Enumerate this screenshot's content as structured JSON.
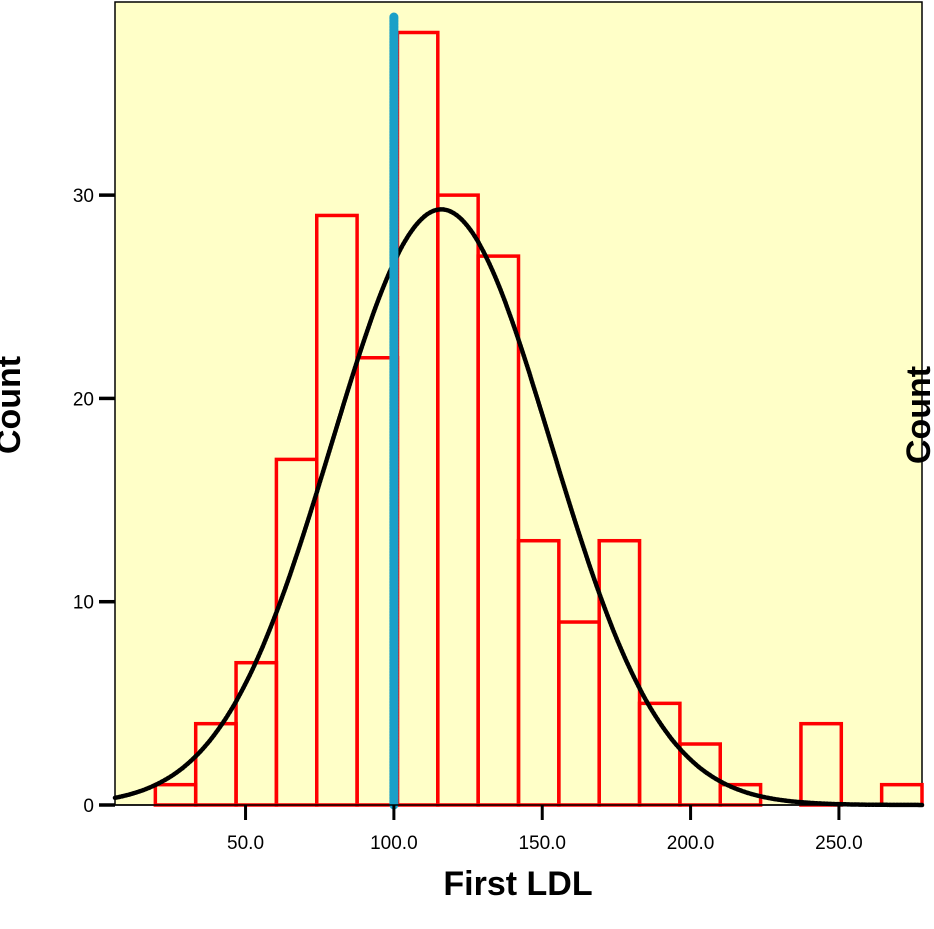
{
  "colors": {
    "background": "#ffffff",
    "plot_background": "#ffffc8",
    "bar_stroke": "#ff0000",
    "curve": "#000000",
    "reference_line": "#1aa0c8"
  },
  "chart_data": {
    "type": "bar",
    "subtype": "histogram",
    "title": "",
    "xlabel": "First LDL",
    "ylabel": "Count",
    "ylabel_right": "Count",
    "xlim": [
      6,
      278
    ],
    "ylim": [
      0,
      39.5
    ],
    "grid": false,
    "legend": "none",
    "bin_width": 13.6,
    "bins": [
      {
        "x0": 19.6,
        "x1": 33.2,
        "count": 1
      },
      {
        "x0": 33.2,
        "x1": 46.8,
        "count": 4
      },
      {
        "x0": 46.8,
        "x1": 60.4,
        "count": 7
      },
      {
        "x0": 60.4,
        "x1": 74.0,
        "count": 17
      },
      {
        "x0": 74.0,
        "x1": 87.6,
        "count": 29
      },
      {
        "x0": 87.6,
        "x1": 101.2,
        "count": 22
      },
      {
        "x0": 101.2,
        "x1": 114.8,
        "count": 38
      },
      {
        "x0": 114.8,
        "x1": 128.4,
        "count": 30
      },
      {
        "x0": 128.4,
        "x1": 142.0,
        "count": 27
      },
      {
        "x0": 142.0,
        "x1": 155.6,
        "count": 13
      },
      {
        "x0": 155.6,
        "x1": 169.2,
        "count": 9
      },
      {
        "x0": 169.2,
        "x1": 182.8,
        "count": 13
      },
      {
        "x0": 182.8,
        "x1": 196.4,
        "count": 5
      },
      {
        "x0": 196.4,
        "x1": 210.0,
        "count": 3
      },
      {
        "x0": 210.0,
        "x1": 223.6,
        "count": 1
      },
      {
        "x0": 237.2,
        "x1": 250.8,
        "count": 4
      },
      {
        "x0": 264.4,
        "x1": 278.0,
        "count": 1
      }
    ],
    "normal_curve": {
      "mean": 116,
      "sd": 37,
      "peak": 29.3
    },
    "reference_line_x": 100,
    "x_ticks": [
      50,
      100,
      150,
      200,
      250
    ],
    "x_tick_labels": [
      "50.0",
      "100.0",
      "150.0",
      "200.0",
      "250.0"
    ],
    "y_ticks": [
      0,
      10,
      20,
      30
    ],
    "y_tick_labels": [
      "0",
      "10",
      "20",
      "30"
    ]
  }
}
